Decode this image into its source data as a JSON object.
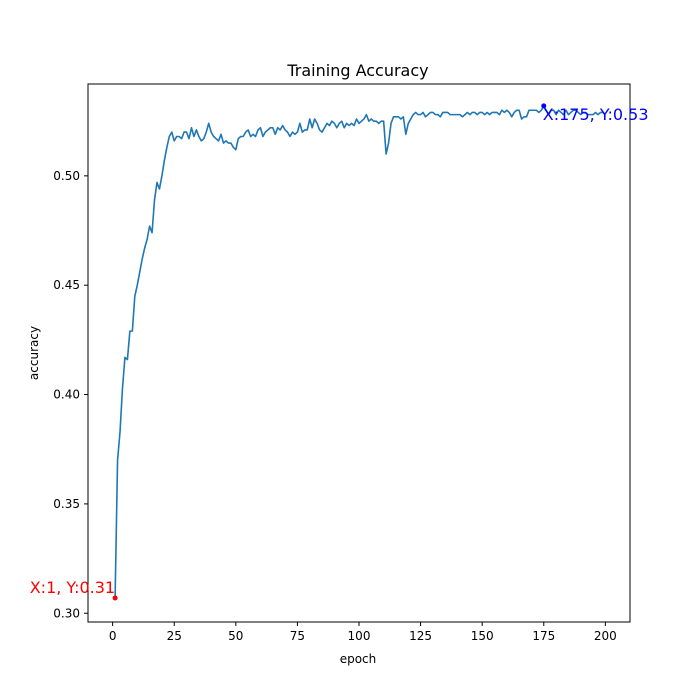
{
  "chart_data": {
    "type": "line",
    "title": "Training Accuracy",
    "xlabel": "epoch",
    "ylabel": "accuracy",
    "xlim": [
      -10,
      210
    ],
    "ylim": [
      0.296,
      0.542
    ],
    "xticks": [
      0,
      25,
      50,
      75,
      100,
      125,
      150,
      175,
      200
    ],
    "yticks": [
      0.3,
      0.35,
      0.4,
      0.45,
      0.5
    ],
    "ytick_labels": [
      "0.30",
      "0.35",
      "0.40",
      "0.45",
      "0.50"
    ],
    "grid": false,
    "line_color": "#1f77b4",
    "series": [
      {
        "x": [
          1,
          2,
          3,
          4,
          5,
          6,
          7,
          8,
          9,
          10,
          11,
          12,
          13,
          14,
          15,
          16,
          17,
          18,
          19,
          20,
          21,
          22,
          23,
          24,
          25,
          26,
          27,
          28,
          29,
          30,
          31,
          32,
          33,
          34,
          35,
          36,
          37,
          38,
          39,
          40,
          41,
          42,
          43,
          44,
          45,
          46,
          47,
          48,
          49,
          50,
          51,
          52,
          53,
          54,
          55,
          56,
          57,
          58,
          59,
          60,
          61,
          62,
          63,
          64,
          65,
          66,
          67,
          68,
          69,
          70,
          71,
          72,
          73,
          74,
          75,
          76,
          77,
          78,
          79,
          80,
          81,
          82,
          83,
          84,
          85,
          86,
          87,
          88,
          89,
          90,
          91,
          92,
          93,
          94,
          95,
          96,
          97,
          98,
          99,
          100,
          101,
          102,
          103,
          104,
          105,
          106,
          107,
          108,
          109,
          110,
          111,
          112,
          113,
          114,
          115,
          116,
          117,
          118,
          119,
          120,
          121,
          122,
          123,
          124,
          125,
          126,
          127,
          128,
          129,
          130,
          131,
          132,
          133,
          134,
          135,
          136,
          137,
          138,
          139,
          140,
          141,
          142,
          143,
          144,
          145,
          146,
          147,
          148,
          149,
          150,
          151,
          152,
          153,
          154,
          155,
          156,
          157,
          158,
          159,
          160,
          161,
          162,
          163,
          164,
          165,
          166,
          167,
          168,
          169,
          170,
          171,
          172,
          173,
          174,
          175,
          176,
          177,
          178,
          179,
          180,
          181,
          182,
          183,
          184,
          185,
          186,
          187,
          188,
          189,
          190,
          191,
          192,
          193,
          194,
          195,
          196,
          197,
          198,
          199,
          200
        ],
        "y": [
          0.307,
          0.37,
          0.383,
          0.403,
          0.417,
          0.416,
          0.429,
          0.429,
          0.445,
          0.45,
          0.456,
          0.462,
          0.467,
          0.471,
          0.477,
          0.474,
          0.489,
          0.497,
          0.494,
          0.5,
          0.507,
          0.513,
          0.518,
          0.52,
          0.516,
          0.518,
          0.518,
          0.517,
          0.52,
          0.52,
          0.517,
          0.522,
          0.518,
          0.521,
          0.518,
          0.516,
          0.517,
          0.52,
          0.524,
          0.52,
          0.518,
          0.517,
          0.516,
          0.519,
          0.515,
          0.516,
          0.515,
          0.515,
          0.513,
          0.512,
          0.517,
          0.518,
          0.518,
          0.52,
          0.521,
          0.518,
          0.519,
          0.518,
          0.521,
          0.522,
          0.518,
          0.52,
          0.521,
          0.522,
          0.522,
          0.519,
          0.522,
          0.521,
          0.523,
          0.521,
          0.52,
          0.518,
          0.52,
          0.519,
          0.52,
          0.524,
          0.52,
          0.521,
          0.521,
          0.526,
          0.522,
          0.526,
          0.524,
          0.521,
          0.52,
          0.522,
          0.524,
          0.523,
          0.525,
          0.524,
          0.522,
          0.524,
          0.525,
          0.522,
          0.524,
          0.523,
          0.524,
          0.523,
          0.526,
          0.524,
          0.525,
          0.526,
          0.528,
          0.525,
          0.526,
          0.525,
          0.525,
          0.524,
          0.525,
          0.525,
          0.51,
          0.515,
          0.524,
          0.527,
          0.527,
          0.527,
          0.526,
          0.527,
          0.519,
          0.524,
          0.526,
          0.528,
          0.529,
          0.528,
          0.528,
          0.529,
          0.527,
          0.528,
          0.529,
          0.529,
          0.528,
          0.528,
          0.527,
          0.529,
          0.529,
          0.529,
          0.528,
          0.528,
          0.528,
          0.528,
          0.528,
          0.527,
          0.528,
          0.529,
          0.528,
          0.529,
          0.529,
          0.528,
          0.529,
          0.529,
          0.528,
          0.529,
          0.528,
          0.529,
          0.529,
          0.529,
          0.528,
          0.53,
          0.529,
          0.53,
          0.529,
          0.527,
          0.529,
          0.53,
          0.53,
          0.526,
          0.527,
          0.527,
          0.53,
          0.53,
          0.53,
          0.53,
          0.529,
          0.53,
          0.532,
          0.53,
          0.528,
          0.53,
          0.53,
          0.528,
          0.53,
          0.529,
          0.528,
          0.53,
          0.528,
          0.529,
          0.53,
          0.53,
          0.529,
          0.528,
          0.529,
          0.529,
          0.528,
          0.528,
          0.528,
          0.529,
          0.528,
          0.529,
          0.529,
          0.528
        ]
      }
    ],
    "annotations": [
      {
        "x": 1,
        "y": 0.307,
        "text": "X:1, Y:0.31",
        "color": "#ff0000",
        "anchor": "end"
      },
      {
        "x": 175,
        "y": 0.532,
        "text": "X:175, Y:0.53",
        "color": "#0000ff",
        "anchor": "start"
      }
    ]
  }
}
